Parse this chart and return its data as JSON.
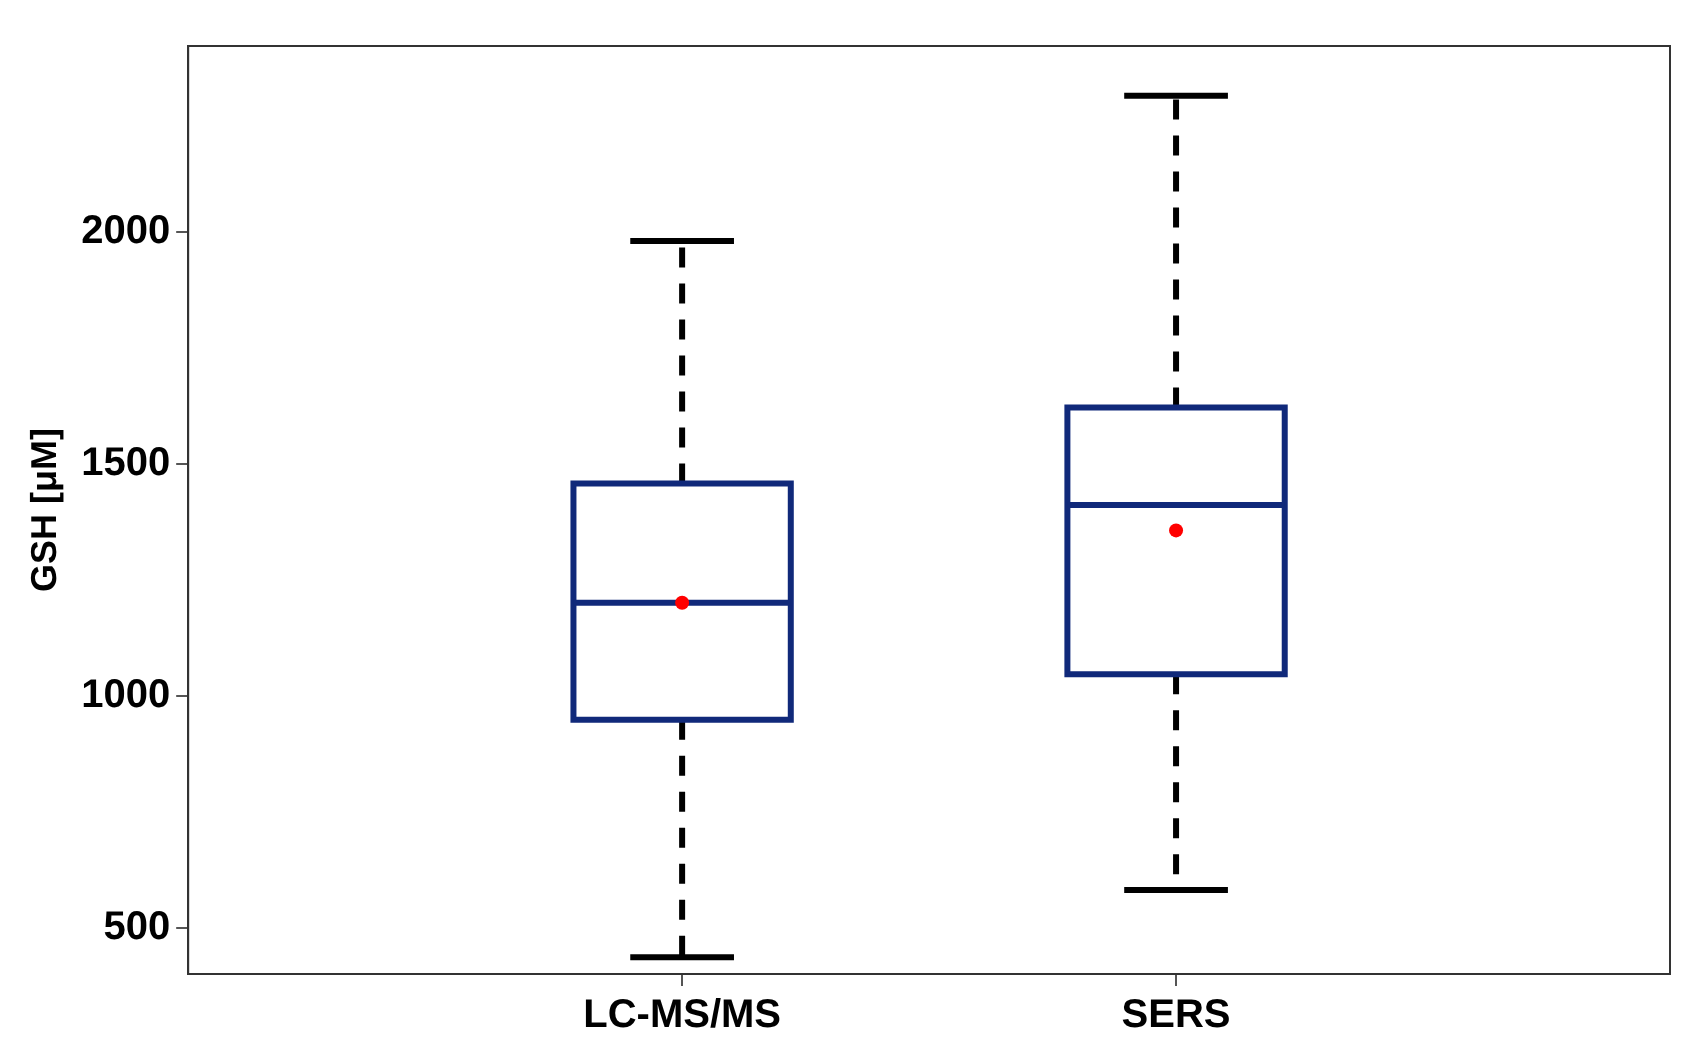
{
  "chart_data": {
    "type": "box",
    "ylabel": "GSH [μM]",
    "categories": [
      "LC-MS/MS",
      "SERS"
    ],
    "series": [
      {
        "color": "#10297a",
        "boxes": [
          {
            "low": 436,
            "q1": 948,
            "median": 1200,
            "q3": 1457,
            "high": 1980,
            "mean": 1200
          },
          {
            "low": 581,
            "q1": 1046,
            "median": 1411,
            "q3": 1621,
            "high": 2293,
            "mean": 1356
          }
        ]
      }
    ],
    "ylim": [
      400,
      2400
    ],
    "yticks": [
      500,
      1000,
      1500,
      2000
    ],
    "grid": false,
    "legend": false
  }
}
